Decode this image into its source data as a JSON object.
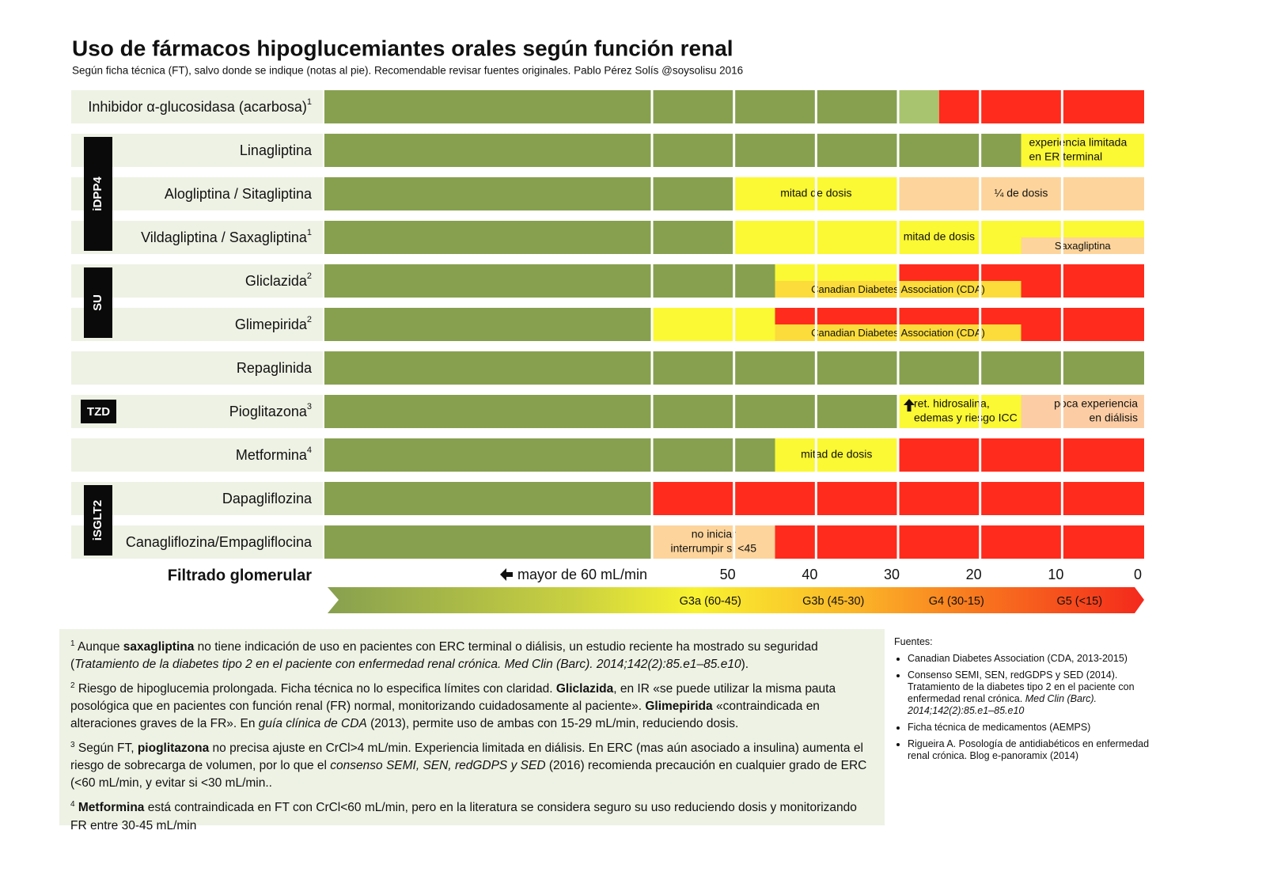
{
  "title": "Uso de fármacos hipoglucemiantes orales según función renal",
  "subtitle": "Según ficha técnica (FT), salvo donde se indique (notas al pie). Recomendable revisar fuentes originales. Pablo Pérez Solís @soysolisu 2016",
  "blocks": [
    {
      "drugs": [
        {
          "label": "Inhibidor α-glucosidasa (acarbosa)",
          "sup": "1",
          "segments": [
            {
              "to": 30,
              "color": "#87a04f"
            },
            {
              "to": 25,
              "color": "#a9c46e"
            },
            {
              "to": 0,
              "color": "#ff2b1c"
            }
          ]
        }
      ]
    },
    {
      "group": "iDPP4",
      "drugs": [
        {
          "label": "Linagliptina",
          "segments": [
            {
              "to": 15,
              "color": "#87a04f"
            },
            {
              "to": 0,
              "color": "#fbf834",
              "label": [
                "experiencia limitada",
                "en ER terminal"
              ],
              "align": "left"
            }
          ]
        },
        {
          "label": "Alogliptina / Sitagliptina",
          "segments": [
            {
              "to": 50,
              "color": "#87a04f"
            },
            {
              "to": 30,
              "color": "#fbf834",
              "label": [
                "mitad de dosis"
              ]
            },
            {
              "to": 0,
              "color": "#fdd49b",
              "label": [
                "¼ de dosis"
              ]
            }
          ]
        },
        {
          "label": "Vildagliptina / Saxagliptina",
          "sup": "1",
          "segments": [
            {
              "to": 50,
              "color": "#87a04f"
            },
            {
              "to": 0,
              "color": "#fbf834",
              "label": [
                "mitad de dosis"
              ]
            }
          ],
          "overlay": {
            "from": 15,
            "to": 0,
            "color": "#fdd49b",
            "label": [
              "Saxagliptina"
            ]
          }
        }
      ]
    },
    {
      "group": "SU",
      "drugs": [
        {
          "label": "Gliclazida",
          "sup": "2",
          "segments": [
            {
              "to": 45,
              "color": "#87a04f"
            },
            {
              "to": 30,
              "color": "#fbf834"
            },
            {
              "to": 0,
              "color": "#ff2b1c"
            }
          ],
          "overlay": {
            "from": 45,
            "to": 15,
            "color": "#fbdc3a",
            "label": [
              "Canadian Diabetes Association (CDA)"
            ]
          }
        },
        {
          "label": "Glimepirida",
          "sup": "2",
          "segments": [
            {
              "to": 60,
              "color": "#87a04f"
            },
            {
              "to": 45,
              "color": "#fbf834"
            },
            {
              "to": 0,
              "color": "#ff2b1c"
            }
          ],
          "overlay": {
            "from": 45,
            "to": 15,
            "color": "#fbdc3a",
            "label": [
              "Canadian Diabetes Association (CDA)"
            ]
          }
        }
      ]
    },
    {
      "drugs": [
        {
          "label": "Repaglinida",
          "segments": [
            {
              "to": 0,
              "color": "#87a04f"
            }
          ]
        }
      ]
    },
    {
      "group": "TZD",
      "drugs": [
        {
          "label": "Pioglitazona",
          "sup": "3",
          "segments": [
            {
              "to": 30,
              "color": "#87a04f"
            },
            {
              "to": 15,
              "color": "#fbf834",
              "label": [
                "ret. hidrosalina,",
                "edemas y riesgo ICC"
              ],
              "align": "left",
              "icon": "up-arrow"
            },
            {
              "to": 0,
              "color": "#fccda4",
              "label": [
                "poca experiencia",
                "en diálisis"
              ],
              "align": "right"
            }
          ]
        }
      ]
    },
    {
      "drugs": [
        {
          "label": "Metformina",
          "sup": "4",
          "segments": [
            {
              "to": 45,
              "color": "#87a04f"
            },
            {
              "to": 30,
              "color": "#fbf834",
              "label": [
                "mitad de dosis"
              ]
            },
            {
              "to": 0,
              "color": "#ff2b1c"
            }
          ]
        }
      ]
    },
    {
      "group": "iSGLT2",
      "drugs": [
        {
          "label": "Dapagliflozina",
          "segments": [
            {
              "to": 60,
              "color": "#87a04f"
            },
            {
              "to": 0,
              "color": "#ff2b1c"
            }
          ]
        },
        {
          "label": "Canagliflozina/Empagliflocina",
          "segments": [
            {
              "to": 60,
              "color": "#87a04f"
            },
            {
              "to": 45,
              "color": "#fdd49b",
              "label": [
                "no iniciar",
                "interrumpir si <45"
              ]
            },
            {
              "to": 0,
              "color": "#ff2b1c"
            }
          ]
        }
      ]
    }
  ],
  "axis": {
    "title": "Filtrado glomerular",
    "left_label": "mayor de 60 mL/min",
    "ticks": [
      50,
      40,
      30,
      20,
      10,
      0
    ],
    "stages": [
      {
        "label": "G3a (60-45)",
        "from": 60,
        "to": 45
      },
      {
        "label": "G3b (45-30)",
        "from": 45,
        "to": 30
      },
      {
        "label": "G4 (30-15)",
        "from": 30,
        "to": 15
      },
      {
        "label": "G5 (<15)",
        "from": 15,
        "to": 0
      }
    ]
  },
  "footnotes": [
    [
      {
        "text": "1",
        "style": "sup"
      },
      {
        "text": " Aunque "
      },
      {
        "text": "saxagliptina",
        "style": "b"
      },
      {
        "text": " no tiene indicación de uso en pacientes con ERC terminal o diálisis, un estudio reciente ha mostrado su seguridad ("
      },
      {
        "text": "Tratamiento de la diabetes tipo 2 en el paciente con enfermedad renal crónica. Med Clin (Barc). 2014;142(2):85.e1–85.e10",
        "style": "i"
      },
      {
        "text": ")."
      }
    ],
    [
      {
        "text": "2",
        "style": "sup"
      },
      {
        "text": " Riesgo de hipoglucemia prolongada. Ficha técnica no lo especifica límites con claridad. "
      },
      {
        "text": "Gliclazida",
        "style": "b"
      },
      {
        "text": ", en IR «se puede utilizar la misma pauta posológica que en pacientes con función renal (FR) normal, monitorizando cuidadosamente al paciente». "
      },
      {
        "text": "Glimepirida",
        "style": "b"
      },
      {
        "text": " «contraindicada en alteraciones graves de la FR». En "
      },
      {
        "text": "guía clínica de CDA",
        "style": "i"
      },
      {
        "text": " (2013), permite uso de ambas con 15-29 mL/min, reduciendo dosis."
      }
    ],
    [
      {
        "text": "3",
        "style": "sup"
      },
      {
        "text": " Según FT, "
      },
      {
        "text": "pioglitazona",
        "style": "b"
      },
      {
        "text": " no precisa ajuste en CrCl>4 mL/min. Experiencia limitada en diálisis. En ERC (mas aún asociado a insulina) aumenta el riesgo de sobrecarga de volumen, por lo que el "
      },
      {
        "text": "consenso SEMI, SEN, redGDPS y SED",
        "style": "i"
      },
      {
        "text": " (2016) recomienda precaución en cualquier grado de ERC (<60 mL/min, y evitar si <30 mL/min.."
      }
    ],
    [
      {
        "text": "4",
        "style": "sup"
      },
      {
        "text": " "
      },
      {
        "text": "Metformina",
        "style": "b"
      },
      {
        "text": " está contraindicada en FT con CrCl<60 mL/min, pero en la literatura se considera seguro su uso reduciendo dosis y monitorizando FR entre 30-45 mL/min"
      }
    ]
  ],
  "sources": {
    "title": "Fuentes:",
    "items": [
      [
        {
          "text": "Canadian Diabetes Association (CDA, 2013-2015)"
        }
      ],
      [
        {
          "text": "Consenso SEMI, SEN, redGDPS y SED (2014). Tratamiento de la diabetes tipo 2 en el paciente con enfermedad renal crónica. "
        },
        {
          "text": "Med Clin (Barc). 2014;142(2):85.e1–85.e10",
          "style": "i"
        }
      ],
      [
        {
          "text": "Ficha técnica de medicamentos (AEMPS)"
        }
      ],
      [
        {
          "text": "Rigueira A. Posología de antidiabéticos en enfermedad renal crónica. Blog e-panoramix (2014)"
        }
      ]
    ]
  }
}
